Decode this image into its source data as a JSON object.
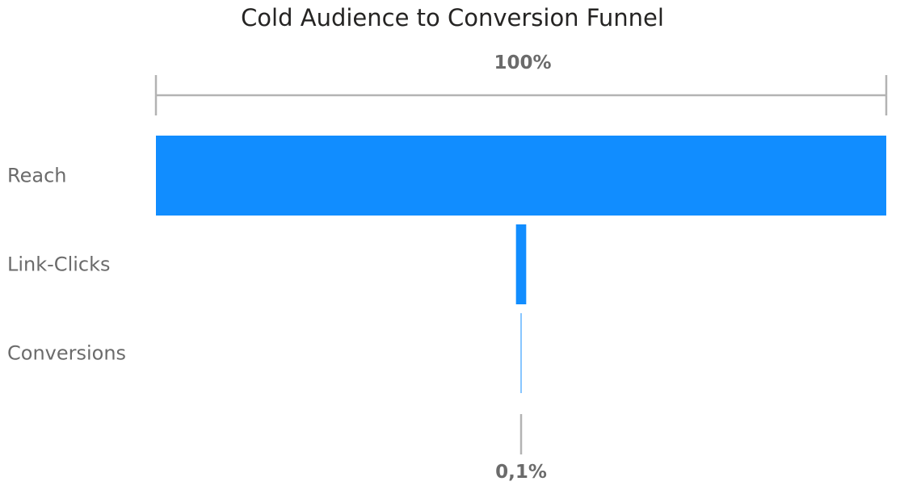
{
  "chart_data": {
    "type": "bar",
    "subtype": "funnel",
    "title": "Cold Audience to Conversion Funnel",
    "categories": [
      "Reach",
      "Link-Clicks",
      "Conversions"
    ],
    "series": [
      {
        "values": [
          100,
          1.4,
          0.1
        ]
      }
    ],
    "value_unit": "percent of first stage",
    "top_label": "100%",
    "bottom_label": "0,1%",
    "bar_color": "#118DFF",
    "grid": false,
    "legend": "none"
  }
}
